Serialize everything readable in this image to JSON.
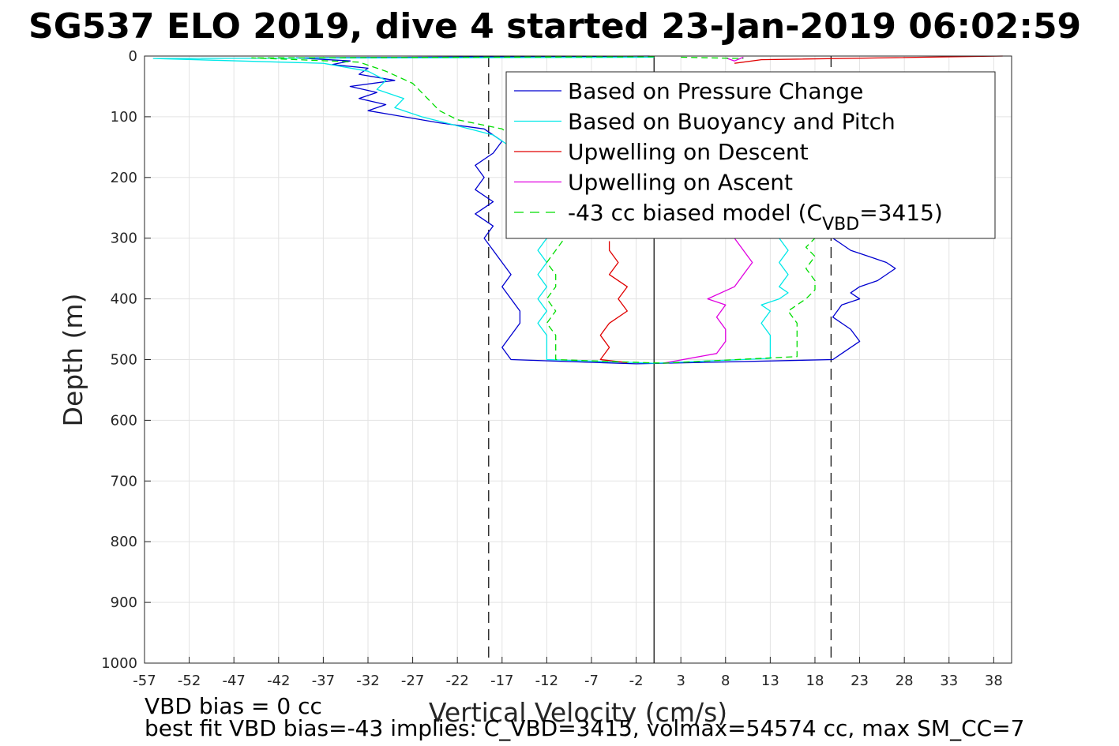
{
  "chart_data": {
    "type": "line",
    "title": "SG537 ELO 2019, dive 4 started 23-Jan-2019 06:02:59",
    "xlabel": "Vertical Velocity (cm/s)",
    "ylabel": "Depth (m)",
    "xlim": [
      -57,
      40
    ],
    "ylim": [
      0,
      1000
    ],
    "y_reversed": true,
    "grid": true,
    "xticks": [
      "-57",
      "-52",
      "-47",
      "-42",
      "-37",
      "-32",
      "-27",
      "-22",
      "-17",
      "-12",
      "-7",
      "-2",
      "3",
      "8",
      "13",
      "18",
      "23",
      "28",
      "33",
      "38"
    ],
    "yticks": [
      "0",
      "100",
      "200",
      "300",
      "400",
      "500",
      "600",
      "700",
      "800",
      "900",
      "1000"
    ],
    "vertical_lines": [
      {
        "x": -18.5,
        "style": "dashed",
        "color": "#000000"
      },
      {
        "x": 0,
        "style": "solid",
        "color": "#000000"
      },
      {
        "x": 19.8,
        "style": "dashed",
        "color": "#000000"
      }
    ],
    "legend": {
      "placement": "top-right",
      "entries": [
        {
          "label": "Based on Pressure Change",
          "color": "#0000d0",
          "style": "solid"
        },
        {
          "label": "Based on Buoyancy and Pitch",
          "color": "#00e8e8",
          "style": "solid"
        },
        {
          "label": "Upwelling on Descent",
          "color": "#e00000",
          "style": "solid"
        },
        {
          "label": "Upwelling on Ascent",
          "color": "#e000e0",
          "style": "solid"
        },
        {
          "label_prefix": "-43 cc biased model (C",
          "label_sub": "VBD",
          "label_suffix": "=3415)",
          "color": "#00dd00",
          "style": "dashed"
        }
      ]
    },
    "series": [
      {
        "name": "Based on Pressure Change (descent)",
        "color": "#0000d0",
        "style": "solid",
        "points": [
          [
            -0.5,
            0
          ],
          [
            -40,
            3
          ],
          [
            -34,
            8
          ],
          [
            -36,
            14
          ],
          [
            -32,
            20
          ],
          [
            -33,
            30
          ],
          [
            -29,
            40
          ],
          [
            -34,
            50
          ],
          [
            -31,
            60
          ],
          [
            -33,
            70
          ],
          [
            -30,
            80
          ],
          [
            -32,
            90
          ],
          [
            -28,
            100
          ],
          [
            -24,
            110
          ],
          [
            -19,
            120
          ],
          [
            -17,
            140
          ],
          [
            -18,
            160
          ],
          [
            -20,
            180
          ],
          [
            -19,
            200
          ],
          [
            -20,
            220
          ],
          [
            -18,
            240
          ],
          [
            -20,
            260
          ],
          [
            -18,
            280
          ],
          [
            -19,
            300
          ],
          [
            -18,
            320
          ],
          [
            -17,
            340
          ],
          [
            -16,
            360
          ],
          [
            -17,
            380
          ],
          [
            -16,
            400
          ],
          [
            -15,
            420
          ],
          [
            -15,
            440
          ],
          [
            -16,
            460
          ],
          [
            -17,
            480
          ],
          [
            -16,
            500
          ],
          [
            -2,
            507
          ]
        ]
      },
      {
        "name": "Based on Pressure Change (ascent)",
        "color": "#0000d0",
        "style": "solid",
        "points": [
          [
            -2,
            507
          ],
          [
            20,
            500
          ],
          [
            21,
            490
          ],
          [
            23,
            470
          ],
          [
            22,
            450
          ],
          [
            20,
            430
          ],
          [
            21,
            410
          ],
          [
            23,
            400
          ],
          [
            22,
            390
          ],
          [
            23,
            380
          ],
          [
            25,
            370
          ],
          [
            27,
            350
          ],
          [
            26,
            340
          ],
          [
            24,
            330
          ],
          [
            22,
            320
          ],
          [
            21,
            310
          ],
          [
            20,
            300
          ]
        ]
      },
      {
        "name": "Based on Buoyancy and Pitch (descent)",
        "color": "#00e8e8",
        "style": "solid",
        "points": [
          [
            0,
            2
          ],
          [
            -56,
            4
          ],
          [
            -37,
            12
          ],
          [
            -32,
            25
          ],
          [
            -30,
            40
          ],
          [
            -31,
            55
          ],
          [
            -28,
            70
          ],
          [
            -29,
            85
          ],
          [
            -26,
            100
          ],
          [
            -22,
            115
          ],
          [
            -18,
            130
          ],
          [
            -16,
            150
          ],
          [
            -15,
            170
          ],
          [
            -16,
            190
          ],
          [
            -15,
            210
          ],
          [
            -14,
            240
          ],
          [
            -13,
            270
          ],
          [
            -12,
            300
          ],
          [
            -13,
            320
          ],
          [
            -12,
            340
          ],
          [
            -13,
            360
          ],
          [
            -12,
            380
          ],
          [
            -13,
            400
          ],
          [
            -12,
            420
          ],
          [
            -13,
            440
          ],
          [
            -12,
            460
          ],
          [
            -12,
            480
          ],
          [
            -12,
            500
          ],
          [
            0,
            506
          ]
        ]
      },
      {
        "name": "Based on Buoyancy and Pitch (ascent)",
        "color": "#00e8e8",
        "style": "solid",
        "points": [
          [
            0,
            506
          ],
          [
            13,
            498
          ],
          [
            13,
            480
          ],
          [
            13,
            460
          ],
          [
            12,
            440
          ],
          [
            13,
            420
          ],
          [
            12,
            410
          ],
          [
            14,
            400
          ],
          [
            15,
            390
          ],
          [
            14,
            380
          ],
          [
            15,
            360
          ],
          [
            14,
            340
          ],
          [
            15,
            320
          ],
          [
            14,
            300
          ]
        ]
      },
      {
        "name": "Upwelling on Descent",
        "color": "#e00000",
        "style": "solid",
        "points": [
          [
            -5,
            305
          ],
          [
            -5,
            320
          ],
          [
            -4,
            340
          ],
          [
            -5,
            360
          ],
          [
            -3,
            380
          ],
          [
            -4,
            400
          ],
          [
            -3,
            420
          ],
          [
            -5,
            440
          ],
          [
            -6,
            460
          ],
          [
            -5,
            480
          ],
          [
            -6,
            500
          ],
          [
            -3,
            505
          ]
        ]
      },
      {
        "name": "Upwelling on Descent (surface)",
        "color": "#e00000",
        "style": "solid",
        "points": [
          [
            9,
            12
          ],
          [
            12,
            6
          ],
          [
            39,
            0
          ]
        ]
      },
      {
        "name": "Upwelling on Ascent",
        "color": "#e000e0",
        "style": "solid",
        "points": [
          [
            1,
            506
          ],
          [
            7,
            490
          ],
          [
            8,
            470
          ],
          [
            8,
            450
          ],
          [
            7,
            430
          ],
          [
            8,
            410
          ],
          [
            6,
            400
          ],
          [
            9,
            380
          ],
          [
            10,
            360
          ],
          [
            11,
            340
          ],
          [
            10,
            320
          ],
          [
            9,
            300
          ]
        ]
      },
      {
        "name": "Upwelling on Ascent (surface)",
        "color": "#e000e0",
        "style": "solid",
        "points": [
          [
            8,
            3
          ],
          [
            9,
            8
          ],
          [
            10,
            2
          ]
        ]
      },
      {
        "name": "-43 cc biased model (descent)",
        "color": "#00dd00",
        "style": "dashed",
        "points": [
          [
            0,
            1
          ],
          [
            -45,
            3
          ],
          [
            -33,
            10
          ],
          [
            -30,
            25
          ],
          [
            -27,
            45
          ],
          [
            -26,
            60
          ],
          [
            -25,
            75
          ],
          [
            -24,
            90
          ],
          [
            -22,
            105
          ],
          [
            -17,
            120
          ],
          [
            -15,
            140
          ],
          [
            -13,
            160
          ],
          [
            -12,
            180
          ],
          [
            -11,
            200
          ],
          [
            -11,
            240
          ],
          [
            -10,
            270
          ],
          [
            -10,
            300
          ],
          [
            -11,
            320
          ],
          [
            -12,
            340
          ],
          [
            -11,
            360
          ],
          [
            -11,
            380
          ],
          [
            -12,
            400
          ],
          [
            -11,
            420
          ],
          [
            -12,
            440
          ],
          [
            -11,
            460
          ],
          [
            -11,
            480
          ],
          [
            -11,
            500
          ],
          [
            1,
            506
          ]
        ]
      },
      {
        "name": "-43 cc biased model (ascent)",
        "color": "#00dd00",
        "style": "dashed",
        "points": [
          [
            1,
            506
          ],
          [
            16,
            495
          ],
          [
            16,
            470
          ],
          [
            16,
            440
          ],
          [
            15,
            420
          ],
          [
            17,
            400
          ],
          [
            18,
            385
          ],
          [
            18,
            370
          ],
          [
            17,
            350
          ],
          [
            18,
            330
          ],
          [
            17,
            315
          ],
          [
            18,
            300
          ]
        ]
      },
      {
        "name": "-43 cc biased model (surface)",
        "color": "#00dd00",
        "style": "dashed",
        "points": [
          [
            3,
            2
          ],
          [
            10,
            4
          ]
        ]
      }
    ],
    "footer": {
      "line1": "VBD bias = 0 cc",
      "line2": "best fit VBD bias=-43 implies: C_VBD=3415, volmax=54574 cc, max SM_CC=7"
    }
  }
}
